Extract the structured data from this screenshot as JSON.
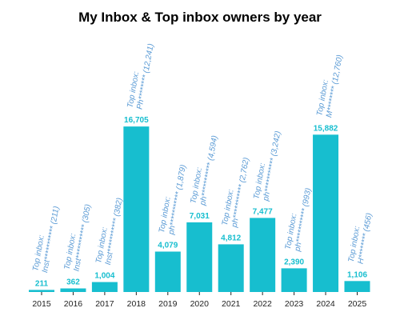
{
  "chart_data": {
    "type": "bar",
    "title": "My Inbox & Top inbox owners by year",
    "xlabel": "",
    "ylabel": "",
    "ylim": [
      0,
      17500
    ],
    "grid": false,
    "categories": [
      "2015",
      "2016",
      "2017",
      "2018",
      "2019",
      "2020",
      "2021",
      "2022",
      "2023",
      "2024",
      "2025"
    ],
    "values": [
      211,
      362,
      1004,
      16705,
      4079,
      7031,
      4812,
      7477,
      2390,
      15882,
      1106
    ],
    "value_labels": [
      "211",
      "362",
      "1,004",
      "16,705",
      "4,079",
      "7,031",
      "4,812",
      "7,477",
      "2,390",
      "15,882",
      "1,106"
    ],
    "annotation_prefix": "Top inbox:",
    "annotations": [
      "Inst*********** (211)",
      "Inst*********** (305)",
      "Inst*********** (382)",
      "Ph******** (12,241)",
      "ph*********** (1,879)",
      "ph*********** (4,594)",
      "ph*********** (2,762)",
      "ph*********** (3,242)",
      "ph*********** (993)",
      "M******** (12,760)",
      "H******** (456)"
    ],
    "colors": {
      "bar": "#17becf",
      "value_label": "#17becf",
      "annotation": "#5b9bd5",
      "axis": "#222222"
    }
  }
}
